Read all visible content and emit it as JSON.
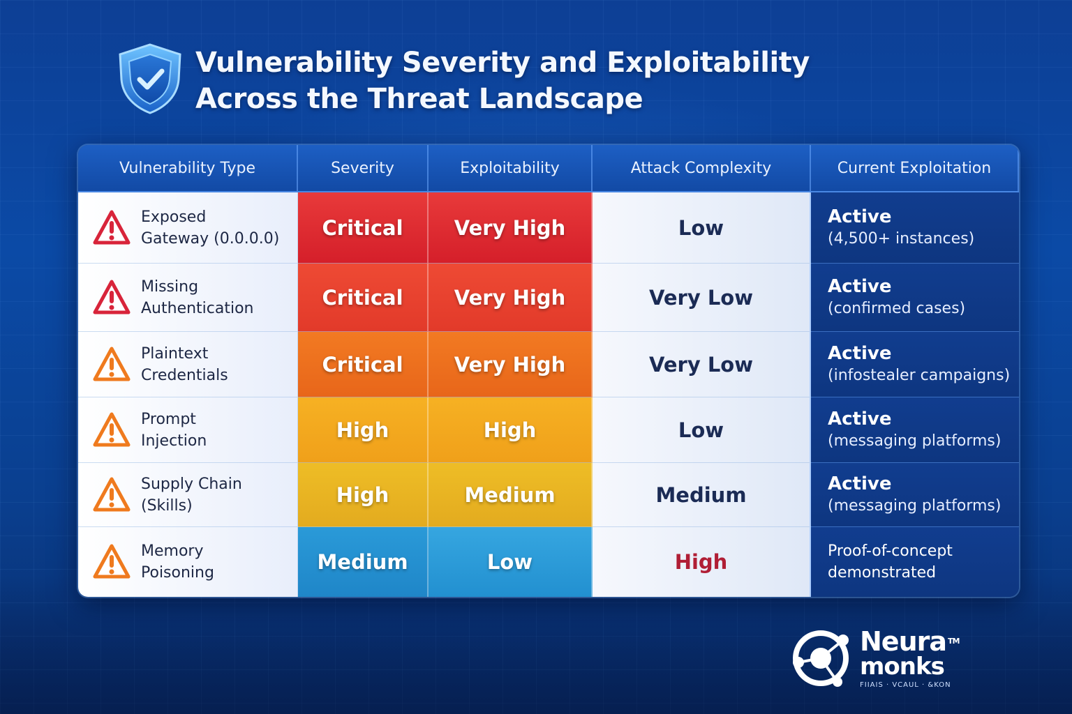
{
  "title": {
    "line1": "Vulnerability Severity and Exploitability",
    "line2": "Across the Threat Landscape"
  },
  "icons": {
    "title": "shield-check-icon",
    "row": "warning-triangle-icon"
  },
  "colors": {
    "critical_red": "#d51f2a",
    "critical_orange": "#e8661a",
    "high_amber": "#f0a01a",
    "medium_blue": "#1f86c8",
    "header_blue": "#124aa5",
    "complexity_high_text": "#b01e35"
  },
  "table": {
    "headers": [
      "Vulnerability Type",
      "Severity",
      "Exploitability",
      "Attack Complexity",
      "Current Exploitation"
    ],
    "rows": [
      {
        "type_line1": "Exposed",
        "type_line2": "Gateway (0.0.0.0)",
        "severity": "Critical",
        "exploitability": "Very High",
        "complexity": "Low",
        "exploitation_status": "Active",
        "exploitation_detail": "(4,500+ instances)"
      },
      {
        "type_line1": "Missing",
        "type_line2": "Authentication",
        "severity": "Critical",
        "exploitability": "Very High",
        "complexity": "Very Low",
        "exploitation_status": "Active",
        "exploitation_detail": "(confirmed cases)"
      },
      {
        "type_line1": "Plaintext",
        "type_line2": "Credentials",
        "severity": "Critical",
        "exploitability": "Very High",
        "complexity": "Very Low",
        "exploitation_status": "Active",
        "exploitation_detail": "(infostealer campaigns)"
      },
      {
        "type_line1": "Prompt",
        "type_line2": "Injection",
        "severity": "High",
        "exploitability": "High",
        "complexity": "Low",
        "exploitation_status": "Active",
        "exploitation_detail": "(messaging platforms)"
      },
      {
        "type_line1": "Supply Chain",
        "type_line2": "(Skills)",
        "severity": "High",
        "exploitability": "Medium",
        "complexity": "Medium",
        "exploitation_status": "Active",
        "exploitation_detail": "(messaging platforms)"
      },
      {
        "type_line1": "Memory",
        "type_line2": "Poisoning",
        "severity": "Medium",
        "exploitability": "Low",
        "complexity": "High",
        "exploitation_line1": "Proof-of-concept",
        "exploitation_line2": "demonstrated"
      }
    ]
  },
  "logo": {
    "line1": "Neura",
    "tm": "TM",
    "line2": "monks",
    "tagline": "FIIAIS · VCAUL · &KON"
  }
}
